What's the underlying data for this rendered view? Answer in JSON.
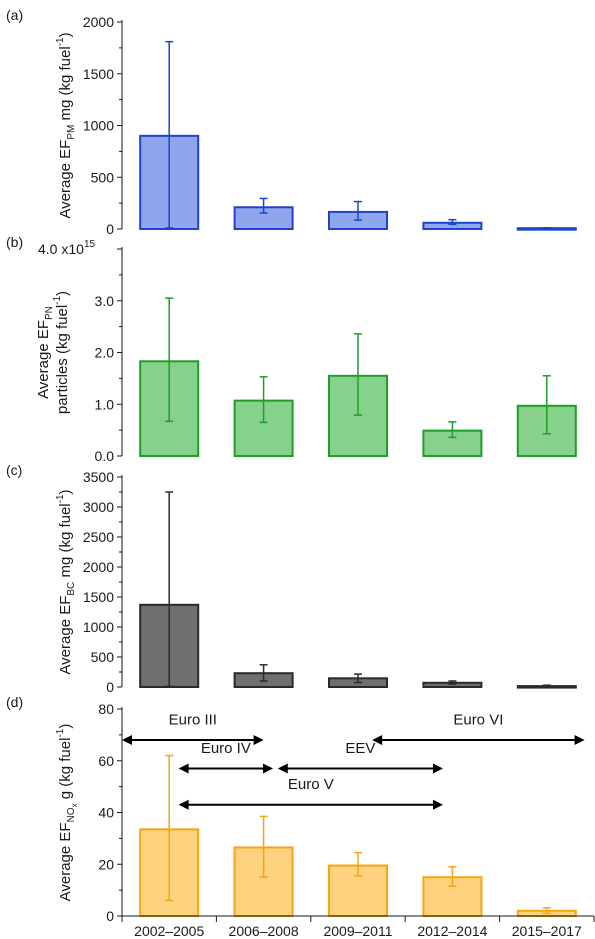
{
  "categories": [
    "2002–2005",
    "2006–2008",
    "2009–2011",
    "2012–2014",
    "2015–2017"
  ],
  "chart_data": [
    {
      "type": "bar",
      "panel_label": "(a)",
      "ylabel_parts": {
        "pre": "Average EF",
        "sub": "PM",
        "post": " mg (kg fuel",
        "sup": "-1",
        "close": ")"
      },
      "ylim": [
        0,
        2000
      ],
      "yticks": [
        "0",
        "500",
        "1000",
        "1500",
        "2000"
      ],
      "values": [
        900,
        210,
        165,
        60,
        8
      ],
      "err_low": [
        10,
        155,
        85,
        45,
        5
      ],
      "err_high": [
        1810,
        295,
        265,
        90,
        12
      ],
      "color_fill": "#8fa6ec",
      "color_edge": "#1f44cc"
    },
    {
      "type": "bar",
      "panel_label": "(b)",
      "ylabel_parts": {
        "pre": "Average EF",
        "sub": "PN",
        "line2": "particles (kg fuel",
        "sup": "-1",
        "close": ")"
      },
      "ylim": [
        0,
        4.0
      ],
      "yticks": [
        "0.0",
        "1.0",
        "2.0",
        "3.0"
      ],
      "top_tick_parts": {
        "base": "4.0 x10",
        "sup": "15"
      },
      "values": [
        1.83,
        1.07,
        1.55,
        0.49,
        0.97
      ],
      "err_low": [
        0.67,
        0.65,
        0.79,
        0.36,
        0.43
      ],
      "err_high": [
        3.05,
        1.53,
        2.36,
        0.66,
        1.55
      ],
      "color_fill": "#86d28c",
      "color_edge": "#1e9e28"
    },
    {
      "type": "bar",
      "panel_label": "(c)",
      "ylabel_parts": {
        "pre": "Average EF",
        "sub": "BC",
        "post": " mg (kg fuel",
        "sup": "-1",
        "close": ")"
      },
      "ylim": [
        0,
        3500
      ],
      "yticks": [
        "0",
        "500",
        "1000",
        "1500",
        "2000",
        "2500",
        "3000",
        "3500"
      ],
      "values": [
        1370,
        230,
        145,
        70,
        15
      ],
      "err_low": [
        10,
        100,
        75,
        50,
        5
      ],
      "err_high": [
        3250,
        370,
        215,
        100,
        30
      ],
      "color_fill": "#6f6f6f",
      "color_edge": "#2a2a2a"
    },
    {
      "type": "bar",
      "panel_label": "(d)",
      "ylabel_parts": {
        "pre": "Average EF",
        "sub": "NO",
        "subsub": "x",
        "post": " g (kg fuel",
        "sup": "-1",
        "close": ")"
      },
      "ylim": [
        0,
        80
      ],
      "yticks": [
        "0",
        "20",
        "40",
        "60",
        "80"
      ],
      "values": [
        33.5,
        26.5,
        19.5,
        15,
        2
      ],
      "err_low": [
        6,
        15,
        15.5,
        11.5,
        1
      ],
      "err_high": [
        62,
        38.5,
        24.5,
        19,
        3.2
      ],
      "color_fill": "#ffd280",
      "color_edge": "#f3a614",
      "annotations": [
        {
          "label": "Euro III",
          "x_from": 0.0,
          "x_to": 1.5,
          "y": 68,
          "label_y": 74
        },
        {
          "label": "Euro IV",
          "x_from": 0.6,
          "x_to": 1.6,
          "y": 57,
          "label_y": 63
        },
        {
          "label": "EEV",
          "x_from": 1.65,
          "x_to": 3.4,
          "y": 57,
          "label_y": 63
        },
        {
          "label": "Euro VI",
          "x_from": 2.65,
          "x_to": 4.9,
          "y": 68,
          "label_y": 74
        },
        {
          "label": "Euro V",
          "x_from": 0.6,
          "x_to": 3.4,
          "y": 43,
          "label_y": 49
        }
      ]
    }
  ]
}
